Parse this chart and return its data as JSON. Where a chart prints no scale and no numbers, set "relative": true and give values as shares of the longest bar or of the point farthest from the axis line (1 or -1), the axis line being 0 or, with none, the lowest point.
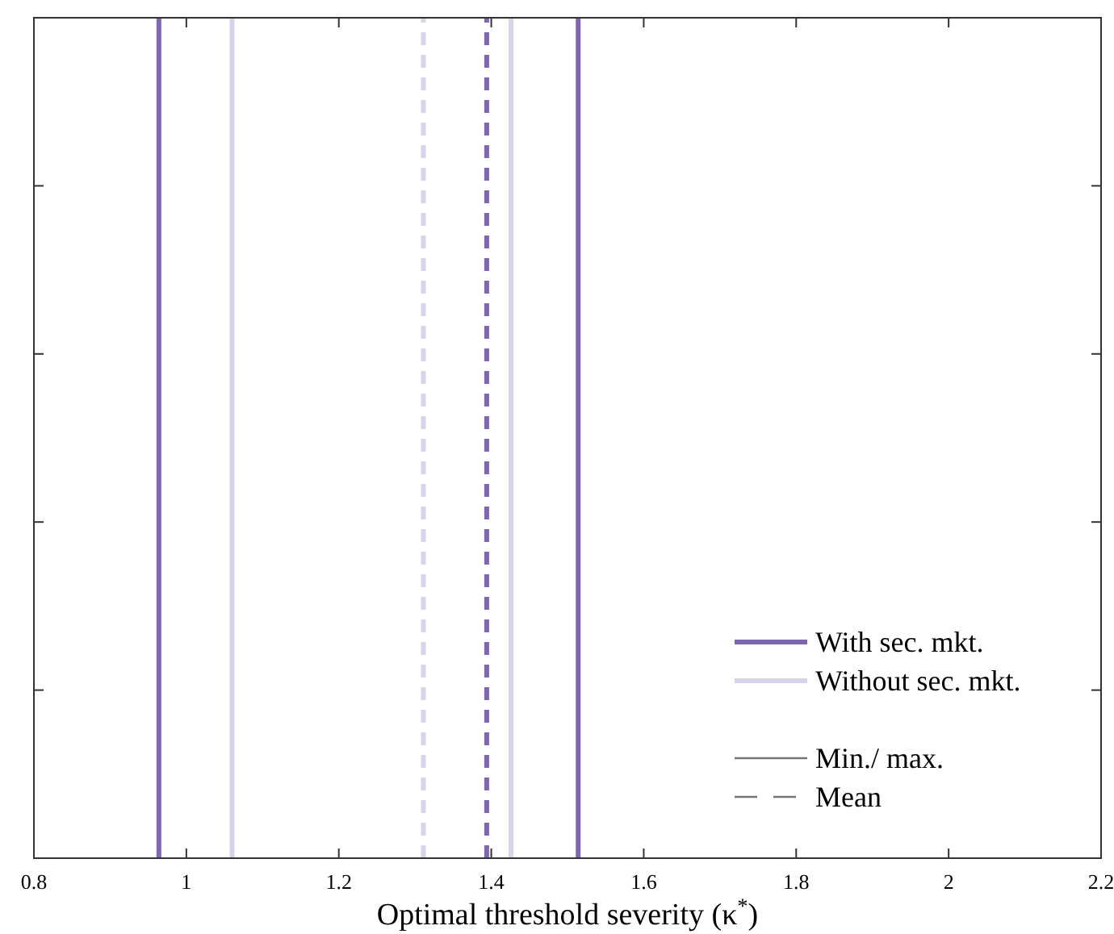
{
  "chart_data": {
    "type": "line",
    "xlabel": "Optimal threshold severity (κ$^{*}$)",
    "xlim": [
      0.8,
      2.2
    ],
    "xticks": [
      0.8,
      1,
      1.2,
      1.4,
      1.6,
      1.8,
      2,
      2.2
    ],
    "relative": true,
    "grid": false,
    "legend": "bottom right",
    "series": [
      {
        "name": "With sec. mkt.",
        "color": "#8066b0",
        "line_style": "solid",
        "x": [
          0.964,
          0.964,
          null,
          1.514,
          1.514
        ],
        "values": [
          0,
          1,
          null,
          0,
          1
        ]
      },
      {
        "name": "Without sec. mkt.",
        "color": "#d8d3ea",
        "line_style": "solid",
        "x": [
          1.06,
          1.06,
          null,
          1.426,
          1.426
        ],
        "values": [
          0,
          1,
          null,
          0,
          1
        ]
      },
      {
        "color": "#d8d3ea",
        "line_style": "dashed",
        "x": [
          1.311,
          1.311
        ],
        "values": [
          0,
          1
        ]
      },
      {
        "color": "#8066b0",
        "line_style": "dashed",
        "x": [
          1.394,
          1.394
        ],
        "values": [
          0,
          1
        ]
      }
    ],
    "annotations": [
      "Min./ max.",
      "Mean"
    ]
  }
}
